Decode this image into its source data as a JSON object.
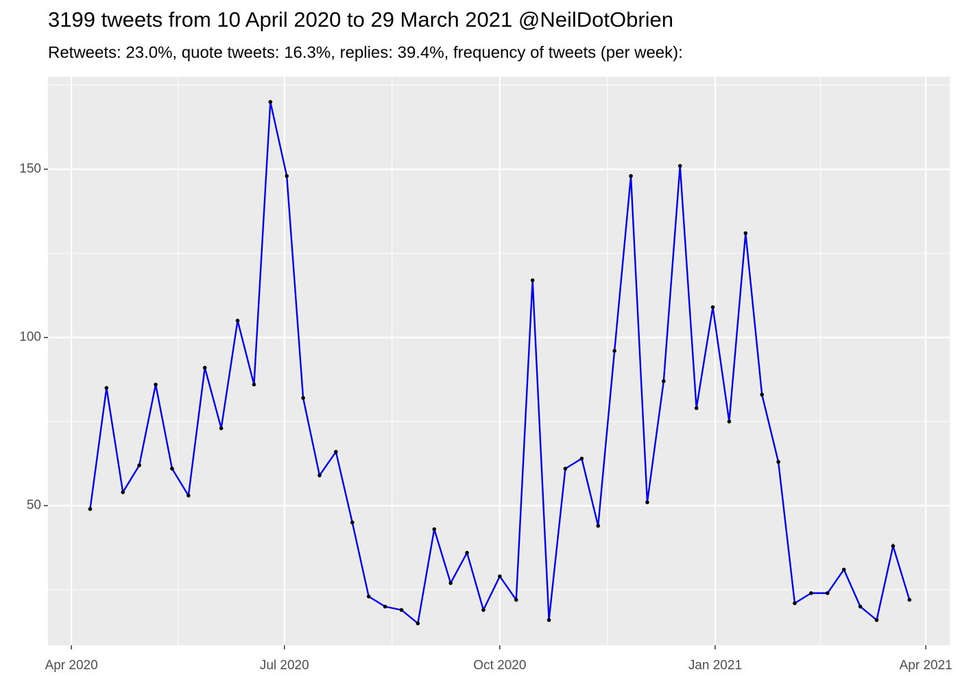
{
  "chart_data": {
    "type": "line",
    "title": "3199 tweets from 10 April 2020 to 29 March 2021 @NeilDotObrien",
    "subtitle": "Retweets: 23.0%, quote tweets: 16.3%, replies: 39.4%, frequency of tweets (per week):",
    "x": [
      8,
      15,
      22,
      29,
      36,
      43,
      50,
      57,
      64,
      71,
      78,
      85,
      92,
      99,
      106,
      113,
      120,
      127,
      134,
      141,
      148,
      155,
      162,
      169,
      176,
      183,
      190,
      197,
      204,
      211,
      218,
      225,
      232,
      239,
      246,
      253,
      260,
      267,
      274,
      281,
      288,
      295,
      302,
      309,
      316,
      323,
      330,
      337,
      344,
      351,
      358
    ],
    "series": [
      {
        "name": "tweets",
        "color": "#0000ee",
        "values": [
          49,
          85,
          54,
          62,
          86,
          61,
          53,
          91,
          73,
          105,
          86,
          170,
          148,
          82,
          59,
          66,
          45,
          23,
          20,
          19,
          15,
          43,
          27,
          36,
          19,
          29,
          22,
          117,
          16,
          61,
          64,
          44,
          96,
          148,
          51,
          87,
          151,
          79,
          109,
          75,
          131,
          83,
          63,
          21,
          24,
          24,
          31,
          20,
          16,
          38,
          22
        ]
      }
    ],
    "xlim": [
      -10,
      375.2
    ],
    "xticks": [
      {
        "value": 0,
        "label": "Apr 2020"
      },
      {
        "value": 91,
        "label": "Jul 2020"
      },
      {
        "value": 183,
        "label": "Oct 2020"
      },
      {
        "value": 275,
        "label": "Jan 2021"
      },
      {
        "value": 365,
        "label": "Apr 2021"
      }
    ],
    "xminor": [
      45.5,
      137,
      229,
      320
    ],
    "ylim": [
      8.5,
      177.5
    ],
    "yticks": [
      50,
      100,
      150
    ],
    "yminor": [
      25,
      75,
      125,
      175
    ],
    "grid": true
  }
}
